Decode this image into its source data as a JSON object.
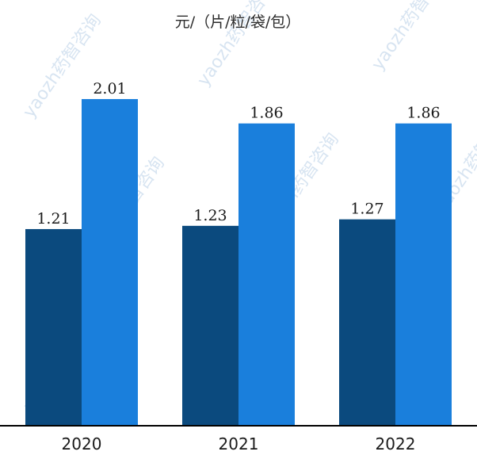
{
  "chart_data": {
    "type": "bar",
    "unit_label": "元/（片/粒/袋/包）",
    "categories": [
      "2020",
      "2021",
      "2022"
    ],
    "series": [
      {
        "values": [
          1.21,
          1.23,
          1.27
        ],
        "color": "#0b4a7e"
      },
      {
        "values": [
          2.01,
          1.86,
          1.86
        ],
        "color": "#1a7fdc"
      }
    ],
    "ylim": [
      0,
      2.4
    ],
    "grid": false,
    "legend": "none"
  },
  "watermark": {
    "text": "yaozh药智咨询"
  }
}
